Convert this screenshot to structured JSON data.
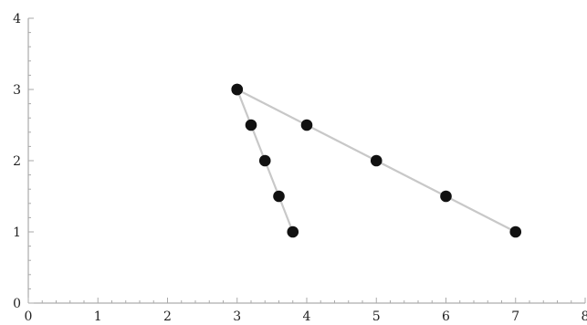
{
  "chart_data": {
    "type": "scatter",
    "title": "",
    "xlabel": "",
    "ylabel": "",
    "xlim": [
      0,
      8
    ],
    "ylim": [
      0,
      4
    ],
    "x_ticks": [
      0,
      1,
      2,
      3,
      4,
      5,
      6,
      7,
      8
    ],
    "y_ticks": [
      0,
      1,
      2,
      3,
      4
    ],
    "x_tick_labels": [
      "0",
      "1",
      "2",
      "3",
      "4",
      "5",
      "6",
      "7",
      "8"
    ],
    "y_tick_labels": [
      "0",
      "1",
      "2",
      "3",
      "4"
    ],
    "minor_ticks_per_unit": 5,
    "grid": false,
    "series": [
      {
        "points": [
          [
            3,
            3
          ],
          [
            3.2,
            2.5
          ],
          [
            3.4,
            2
          ],
          [
            3.6,
            1.5
          ],
          [
            3.8,
            1
          ]
        ]
      },
      {
        "points": [
          [
            3,
            3
          ],
          [
            4,
            2.5
          ],
          [
            5,
            2
          ],
          [
            6,
            1.5
          ],
          [
            7,
            1
          ]
        ]
      }
    ],
    "colors": {
      "line": "#c8c8c8",
      "marker": "#111111",
      "axis": "#999999"
    }
  }
}
